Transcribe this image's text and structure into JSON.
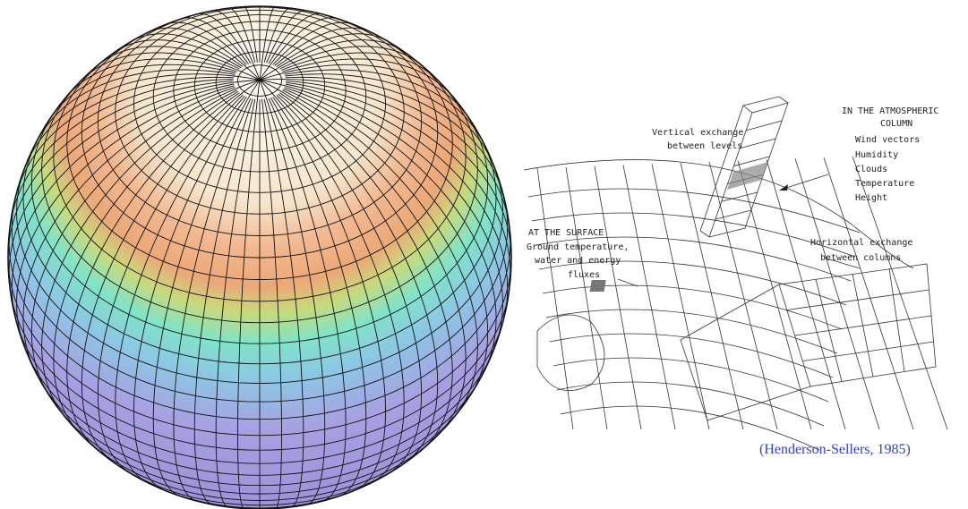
{
  "diagram": {
    "vertical_exchange": [
      "Vertical exchange",
      "between levels"
    ],
    "column_title": [
      "IN THE ATMOSPHERIC",
      "COLUMN"
    ],
    "column_items": [
      "Wind vectors",
      "Humidity",
      "Clouds",
      "Temperature",
      "Height"
    ],
    "surface_title": "AT THE SURFACE",
    "surface_text": [
      "Ground temperature,",
      "water and energy",
      "fluxes"
    ],
    "horizontal_exchange": [
      "Horizontal exchange",
      "between columns"
    ]
  },
  "citation": "(Henderson-Sellers, 1985)"
}
